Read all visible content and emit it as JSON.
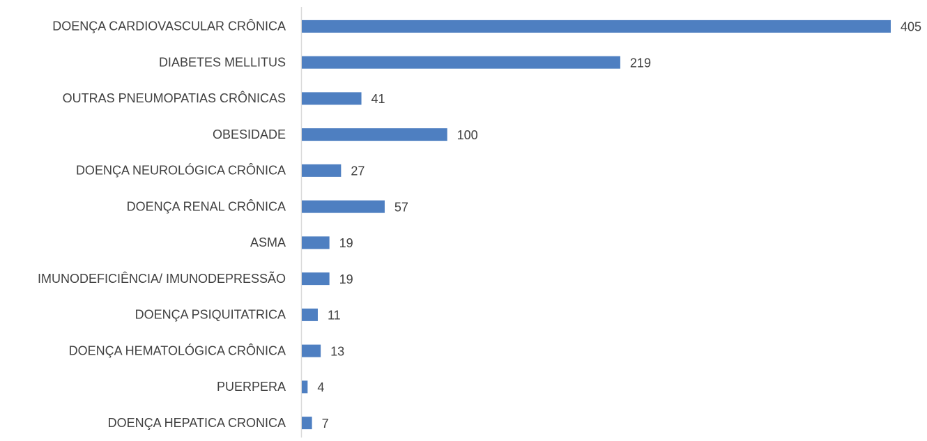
{
  "chart_data": {
    "type": "bar",
    "orientation": "horizontal",
    "color": "#4e7fc1",
    "categories": [
      "DOENÇA CARDIOVASCULAR CRÔNICA",
      "DIABETES MELLITUS",
      "OUTRAS PNEUMOPATIAS CRÔNICAS",
      "OBESIDADE",
      "DOENÇA NEUROLÓGICA CRÔNICA",
      "DOENÇA RENAL CRÔNICA",
      "ASMA",
      "IMUNODEFICIÊNCIA/ IMUNODEPRESSÃO",
      "DOENÇA PSIQUITATRICA",
      "DOENÇA HEMATOLÓGICA CRÔNICA",
      "PUERPERA",
      "DOENÇA HEPATICA CRONICA"
    ],
    "values": [
      405,
      219,
      41,
      100,
      27,
      57,
      19,
      19,
      11,
      13,
      4,
      7
    ]
  }
}
